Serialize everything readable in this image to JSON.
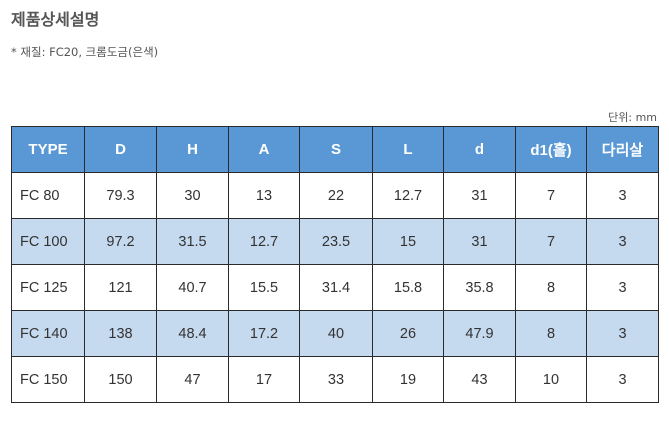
{
  "page": {
    "title": "제품상세설명",
    "note": "* 재질: FC20, 크롬도금(은색)",
    "unit": "단위: mm"
  },
  "table": {
    "headers": [
      "TYPE",
      "D",
      "H",
      "A",
      "S",
      "L",
      "d",
      "d1(홀)",
      "다리살"
    ],
    "rows": [
      [
        "FC 80",
        "79.3",
        "30",
        "13",
        "22",
        "12.7",
        "31",
        "7",
        "3"
      ],
      [
        "FC 100",
        "97.2",
        "31.5",
        "12.7",
        "23.5",
        "15",
        "31",
        "7",
        "3"
      ],
      [
        "FC 125",
        "121",
        "40.7",
        "15.5",
        "31.4",
        "15.8",
        "35.8",
        "8",
        "3"
      ],
      [
        "FC 140",
        "138",
        "48.4",
        "17.2",
        "40",
        "26",
        "47.9",
        "8",
        "3"
      ],
      [
        "FC 150",
        "150",
        "47",
        "17",
        "33",
        "19",
        "43",
        "10",
        "3"
      ]
    ],
    "header_color": "#5a98d5",
    "shaded_row_color": "#c5d9ef",
    "border_color": "#2a2a2a"
  }
}
